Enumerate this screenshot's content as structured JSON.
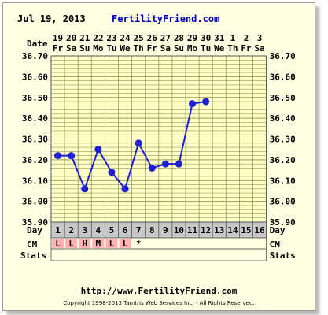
{
  "header": {
    "date": "Jul 19, 2013",
    "site": "FertilityFriend.com"
  },
  "row_labels": {
    "date": "Date",
    "day": "Day",
    "cm": "CM",
    "stats": "Stats"
  },
  "footer": {
    "url": "http://www.FertilityFriend.com",
    "copyright": "Copyright 1998-2013 Tamtris Web Services Inc. - All Rights Reserved."
  },
  "chart_data": {
    "type": "line",
    "columns": 16,
    "dates": [
      "19",
      "20",
      "21",
      "22",
      "23",
      "24",
      "25",
      "26",
      "27",
      "28",
      "29",
      "30",
      "31",
      "1",
      "2",
      "3"
    ],
    "weekdays": [
      "Fr",
      "Sa",
      "Su",
      "Mo",
      "Tu",
      "We",
      "Th",
      "Fr",
      "Sa",
      "Su",
      "Mo",
      "Tu",
      "We",
      "Th",
      "Fr",
      "Sa"
    ],
    "days": [
      "1",
      "2",
      "3",
      "4",
      "5",
      "6",
      "7",
      "8",
      "9",
      "10",
      "11",
      "12",
      "13",
      "14",
      "15",
      "16"
    ],
    "ylim": [
      35.9,
      36.7
    ],
    "yticks": [
      "36.70",
      "36.60",
      "36.50",
      "36.40",
      "36.30",
      "36.20",
      "36.10",
      "36.00",
      "35.90"
    ],
    "series": [
      {
        "values": [
          36.22,
          36.22,
          36.06,
          36.25,
          36.14,
          36.06,
          36.28,
          36.16,
          36.18,
          36.18,
          36.47,
          36.48,
          null,
          null,
          null,
          null
        ],
        "color": "#1f1fd6"
      }
    ],
    "cm": [
      "L",
      "L",
      "H",
      "M",
      "L",
      "L",
      "*",
      "",
      "",
      "",
      "",
      "",
      "",
      "",
      "",
      ""
    ],
    "cm_color": "#ffb3b3",
    "grid_color": "#9a9a55",
    "day_row_color": "#c8c8c8"
  }
}
